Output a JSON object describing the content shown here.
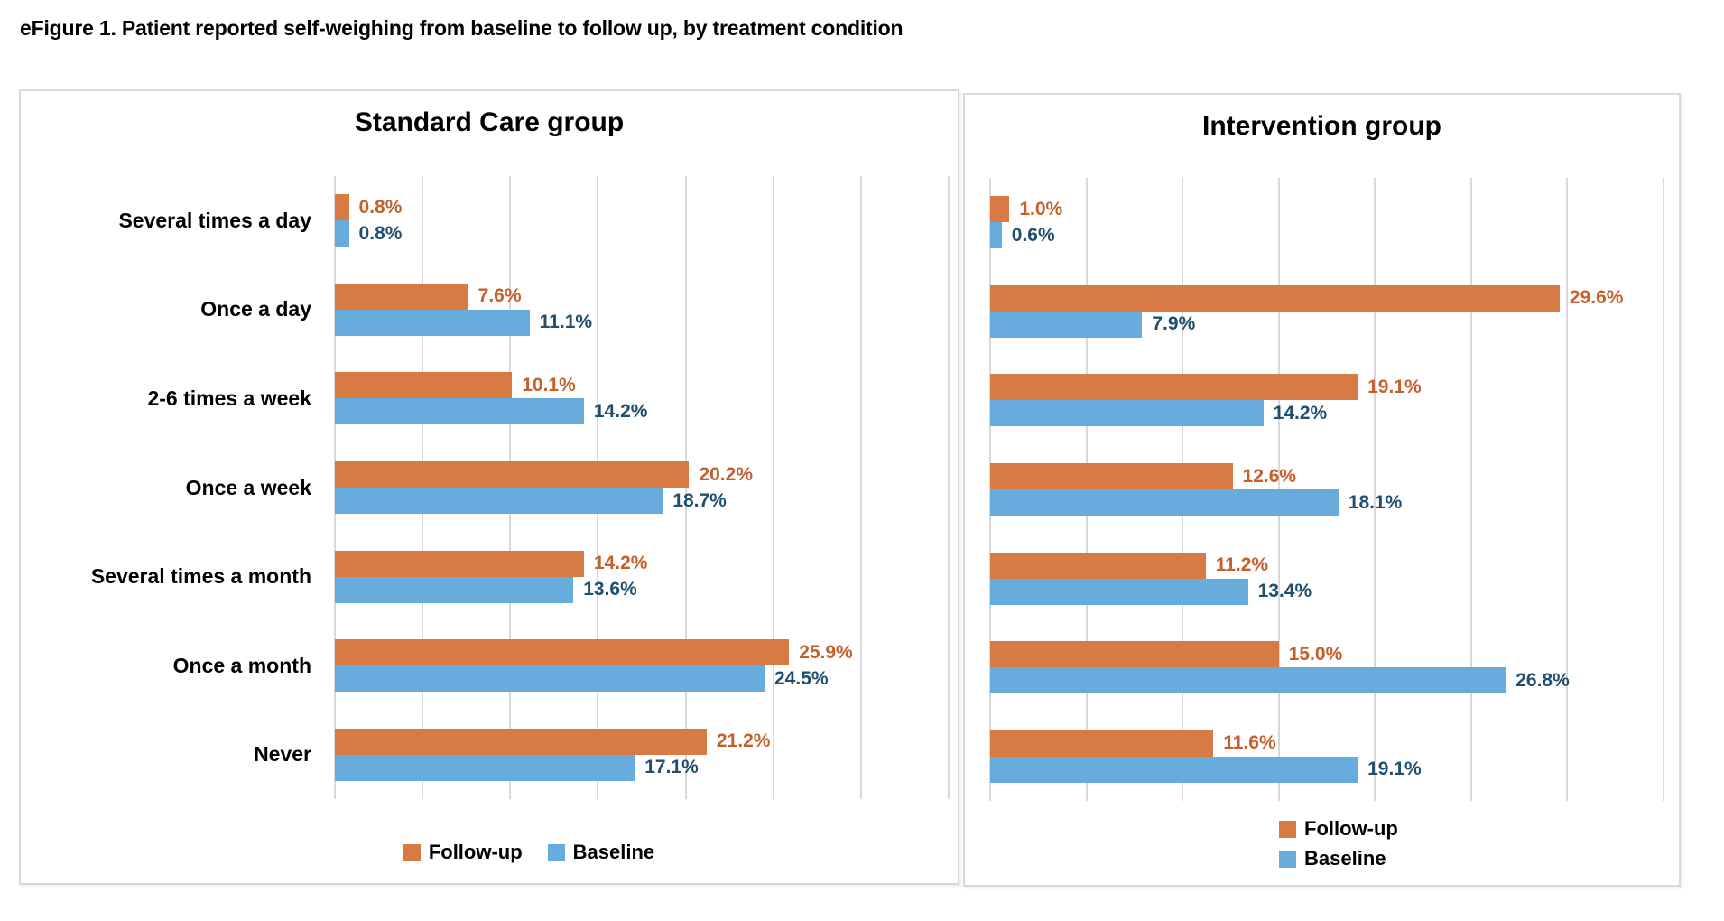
{
  "page": {
    "title": "eFigure 1. Patient reported self-weighing from baseline to follow up, by treatment condition"
  },
  "colors": {
    "followup_bar": "#D77A43",
    "baseline_bar": "#68ACDD",
    "followup_value_text": "#C55F2C",
    "baseline_value_text": "#1F4E6F",
    "gridline": "#D9D9D9",
    "panel_border": "#D9D9D9",
    "title_text": "#000000"
  },
  "legend": {
    "followup_label": "Follow-up",
    "baseline_label": "Baseline"
  },
  "chart_data": [
    {
      "type": "bar",
      "orientation": "horizontal",
      "title": "Standard Care group",
      "categories": [
        "Several times a day",
        "Once a day",
        "2-6 times a week",
        "Once a week",
        "Several times a month",
        "Once a month",
        "Never"
      ],
      "series": [
        {
          "name": "Follow-up",
          "color": "#D77A43",
          "values": [
            0.8,
            7.6,
            10.1,
            20.2,
            14.2,
            25.9,
            21.2
          ]
        },
        {
          "name": "Baseline",
          "color": "#68ACDD",
          "values": [
            0.8,
            11.1,
            14.2,
            18.7,
            13.6,
            24.5,
            17.1
          ]
        }
      ],
      "value_suffix": "%",
      "xlim": [
        0,
        35
      ],
      "gridline_step": 5,
      "grid": true,
      "axis_tick_labels_visible": false,
      "data_labels_visible": true,
      "legend_position": "bottom-horizontal",
      "show_category_labels": true
    },
    {
      "type": "bar",
      "orientation": "horizontal",
      "title": "Intervention group",
      "categories": [
        "Several times a day",
        "Once a day",
        "2-6 times a week",
        "Once a week",
        "Several times a month",
        "Once a month",
        "Never"
      ],
      "series": [
        {
          "name": "Follow-up",
          "color": "#D77A43",
          "values": [
            1.0,
            29.6,
            19.1,
            12.6,
            11.2,
            15.0,
            11.6
          ]
        },
        {
          "name": "Baseline",
          "color": "#68ACDD",
          "values": [
            0.6,
            7.9,
            14.2,
            18.1,
            13.4,
            26.8,
            19.1
          ]
        }
      ],
      "value_suffix": "%",
      "xlim": [
        0,
        35
      ],
      "gridline_step": 5,
      "grid": true,
      "axis_tick_labels_visible": false,
      "data_labels_visible": true,
      "legend_position": "bottom-stacked",
      "show_category_labels": false
    }
  ]
}
